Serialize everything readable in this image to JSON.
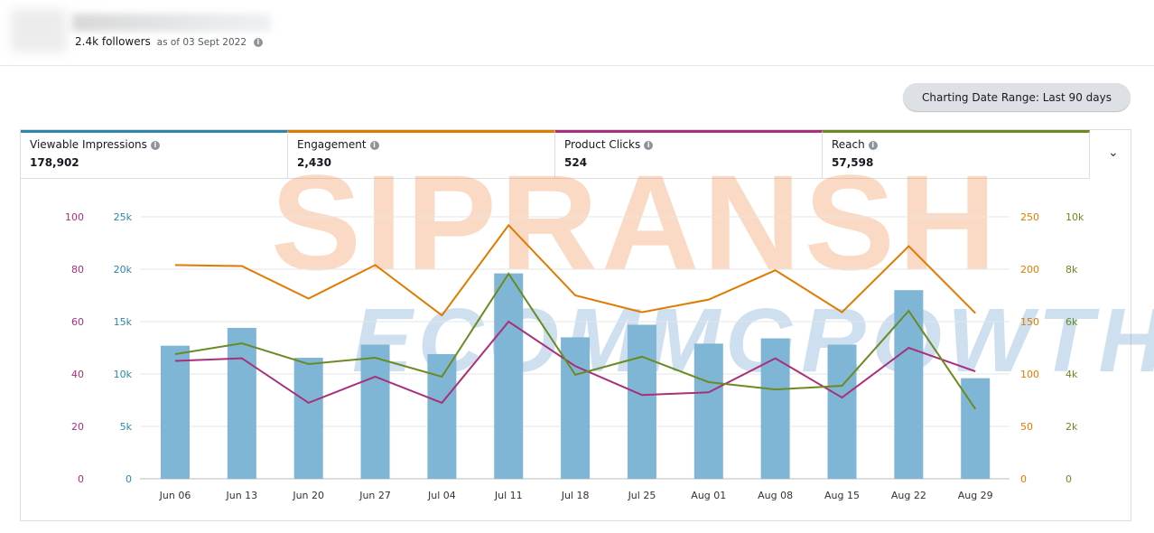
{
  "header": {
    "followers": "2.4k followers",
    "as_of": "as of 03 Sept 2022",
    "info_icon": "i"
  },
  "range_button": "Charting Date Range: Last 90 days",
  "metrics": [
    {
      "label": "Viewable Impressions",
      "value": "178,902",
      "color": "#2e86ab"
    },
    {
      "label": "Engagement",
      "value": "2,430",
      "color": "#e07b00"
    },
    {
      "label": "Product Clicks",
      "value": "524",
      "color": "#a8307a"
    },
    {
      "label": "Reach",
      "value": "57,598",
      "color": "#6b8a22"
    }
  ],
  "watermark": {
    "line1": "SIPRANSH",
    "line2": "ECOMMGROWTH"
  },
  "chart_data": {
    "type": "bar+line",
    "categories": [
      "Jun 06",
      "Jun 13",
      "Jun 20",
      "Jun 27",
      "Jul 04",
      "Jul 11",
      "Jul 18",
      "Jul 25",
      "Aug 01",
      "Aug 08",
      "Aug 15",
      "Aug 22",
      "Aug 29"
    ],
    "series": [
      {
        "name": "Viewable Impressions",
        "type": "bar",
        "axis": "left2",
        "color": "#7fb6d5",
        "values": [
          12700,
          14400,
          11550,
          12800,
          11900,
          19600,
          13500,
          14700,
          12900,
          13400,
          12800,
          18000,
          9600
        ]
      },
      {
        "name": "Engagement",
        "type": "line",
        "axis": "right1",
        "color": "#e07b00",
        "values": [
          204,
          203,
          172,
          204,
          156,
          242,
          175,
          159,
          171,
          199,
          159,
          222,
          158
        ]
      },
      {
        "name": "Product Clicks",
        "type": "line",
        "axis": "left1",
        "color": "#a8307a",
        "values": [
          45,
          46,
          29,
          39,
          29,
          60,
          43,
          32,
          33,
          46,
          31,
          50,
          41
        ]
      },
      {
        "name": "Reach",
        "type": "line",
        "axis": "right2",
        "color": "#6b8a22",
        "values": [
          4760,
          5170,
          4380,
          4620,
          3900,
          7830,
          3970,
          4660,
          3690,
          3410,
          3550,
          6410,
          2660
        ]
      }
    ],
    "axes": {
      "left1": {
        "range": [
          0,
          100
        ],
        "ticks": [
          "0",
          "20",
          "40",
          "60",
          "80",
          "100"
        ],
        "color": "#a8307a"
      },
      "left2": {
        "range": [
          0,
          25000
        ],
        "ticks": [
          "0",
          "5k",
          "10k",
          "15k",
          "20k",
          "25k"
        ],
        "color": "#2e86ab"
      },
      "right1": {
        "range": [
          0,
          250
        ],
        "ticks": [
          "0",
          "50",
          "100",
          "150",
          "200",
          "250"
        ],
        "color": "#e07b00"
      },
      "right2": {
        "range": [
          0,
          10000
        ],
        "ticks": [
          "0",
          "2k",
          "4k",
          "6k",
          "8k",
          "10k"
        ],
        "color": "#6b8a22"
      }
    },
    "grid": true
  }
}
